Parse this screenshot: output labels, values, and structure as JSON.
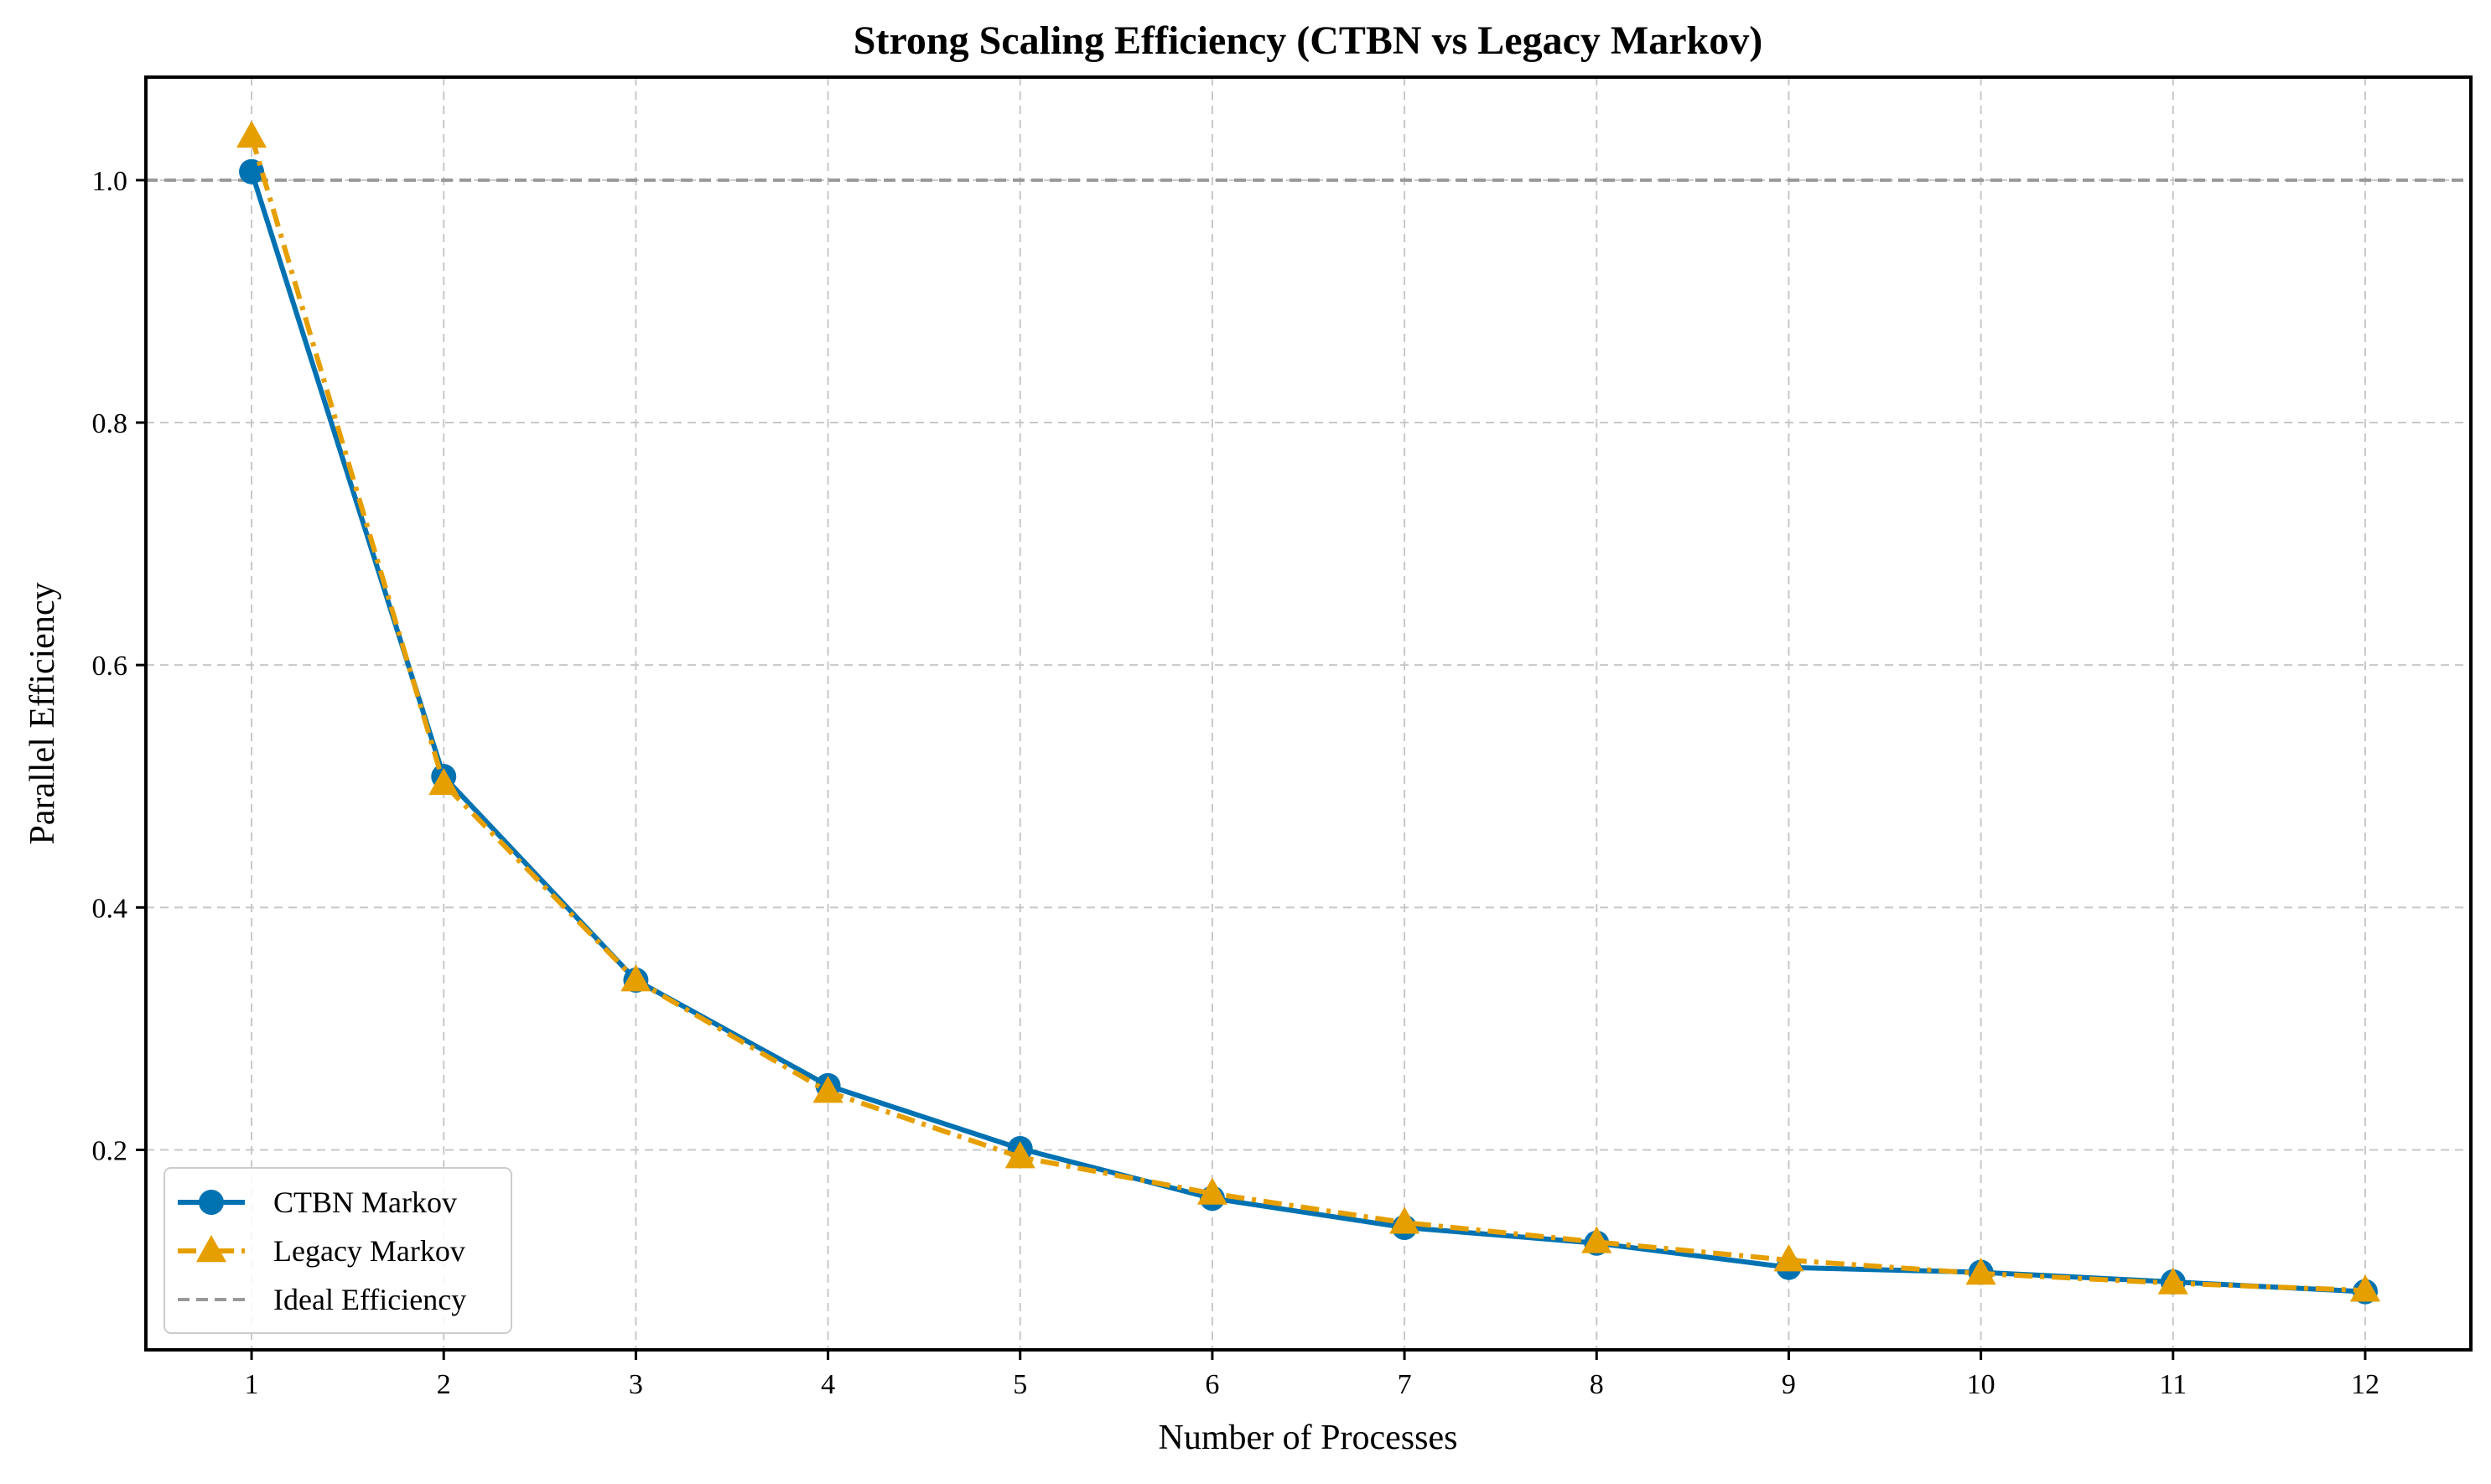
{
  "chart_data": {
    "type": "line",
    "title": "Strong Scaling Efficiency (CTBN vs Legacy Markov)",
    "xlabel": "Number of Processes",
    "ylabel": "Parallel Efficiency",
    "x": [
      1,
      2,
      3,
      4,
      5,
      6,
      7,
      8,
      9,
      10,
      11,
      12
    ],
    "xlim": [
      0.45,
      12.55
    ],
    "ylim": [
      0.035,
      1.085
    ],
    "xticks": [
      "1",
      "2",
      "3",
      "4",
      "5",
      "6",
      "7",
      "8",
      "9",
      "10",
      "11",
      "12"
    ],
    "yticks": [
      0.2,
      0.4,
      0.6,
      0.8,
      1.0
    ],
    "ytick_labels": [
      "0.2",
      "0.4",
      "0.6",
      "0.8",
      "1.0"
    ],
    "grid": true,
    "legend_position": "bottom-left",
    "series": [
      {
        "name": "CTBN Markov",
        "color": "#0072B2",
        "line_style": "solid",
        "marker": "circle",
        "values": [
          1.007,
          0.508,
          0.34,
          0.253,
          0.201,
          0.16,
          0.136,
          0.123,
          0.103,
          0.099,
          0.091,
          0.083
        ]
      },
      {
        "name": "Legacy Markov",
        "color": "#E69F00",
        "line_style": "dashdot",
        "marker": "triangle",
        "values": [
          1.036,
          0.502,
          0.34,
          0.248,
          0.194,
          0.164,
          0.14,
          0.124,
          0.109,
          0.098,
          0.09,
          0.084
        ]
      }
    ],
    "reference_line": {
      "name": "Ideal Efficiency",
      "value": 1.0,
      "color": "#999999",
      "line_style": "dashed"
    }
  }
}
